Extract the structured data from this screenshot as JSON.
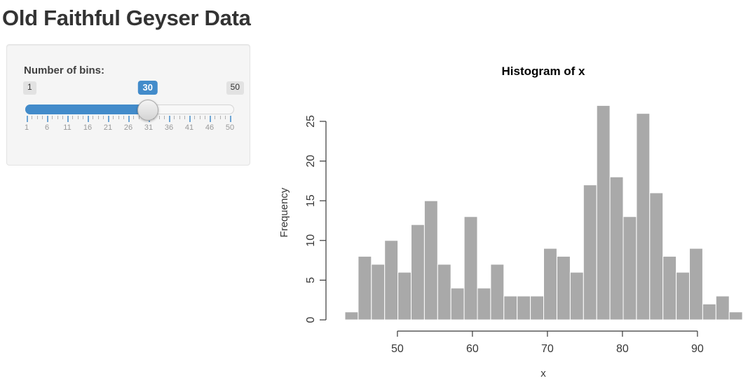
{
  "page": {
    "title": "Old Faithful Geyser Data"
  },
  "sidebar": {
    "slider": {
      "label": "Number of bins:",
      "min": "1",
      "max": "50",
      "value": "30",
      "min_num": 1,
      "max_num": 50,
      "value_num": 30,
      "grid_labels": [
        "1",
        "6",
        "11",
        "16",
        "21",
        "26",
        "31",
        "36",
        "41",
        "46",
        "50"
      ],
      "accent_color": "#428bca"
    }
  },
  "chart_data": {
    "type": "bar",
    "title": "Histogram of x",
    "xlabel": "x",
    "ylabel": "Frequency",
    "bin_start": 43,
    "bin_end": 96,
    "bins": 30,
    "frequencies": [
      1,
      8,
      7,
      10,
      6,
      12,
      15,
      7,
      4,
      13,
      4,
      7,
      3,
      3,
      3,
      9,
      8,
      6,
      17,
      27,
      18,
      13,
      26,
      16,
      8,
      6,
      9,
      2,
      3,
      1
    ],
    "x_ticks": [
      50,
      60,
      70,
      80,
      90
    ],
    "y_ticks": [
      0,
      5,
      10,
      15,
      20,
      25
    ],
    "xlim": [
      43,
      96
    ],
    "ylim": [
      0,
      27
    ],
    "bar_color": "#a9a9a9",
    "bar_border": "#ffffff",
    "axis_color": "#383838",
    "grid": false,
    "legend": "none"
  }
}
